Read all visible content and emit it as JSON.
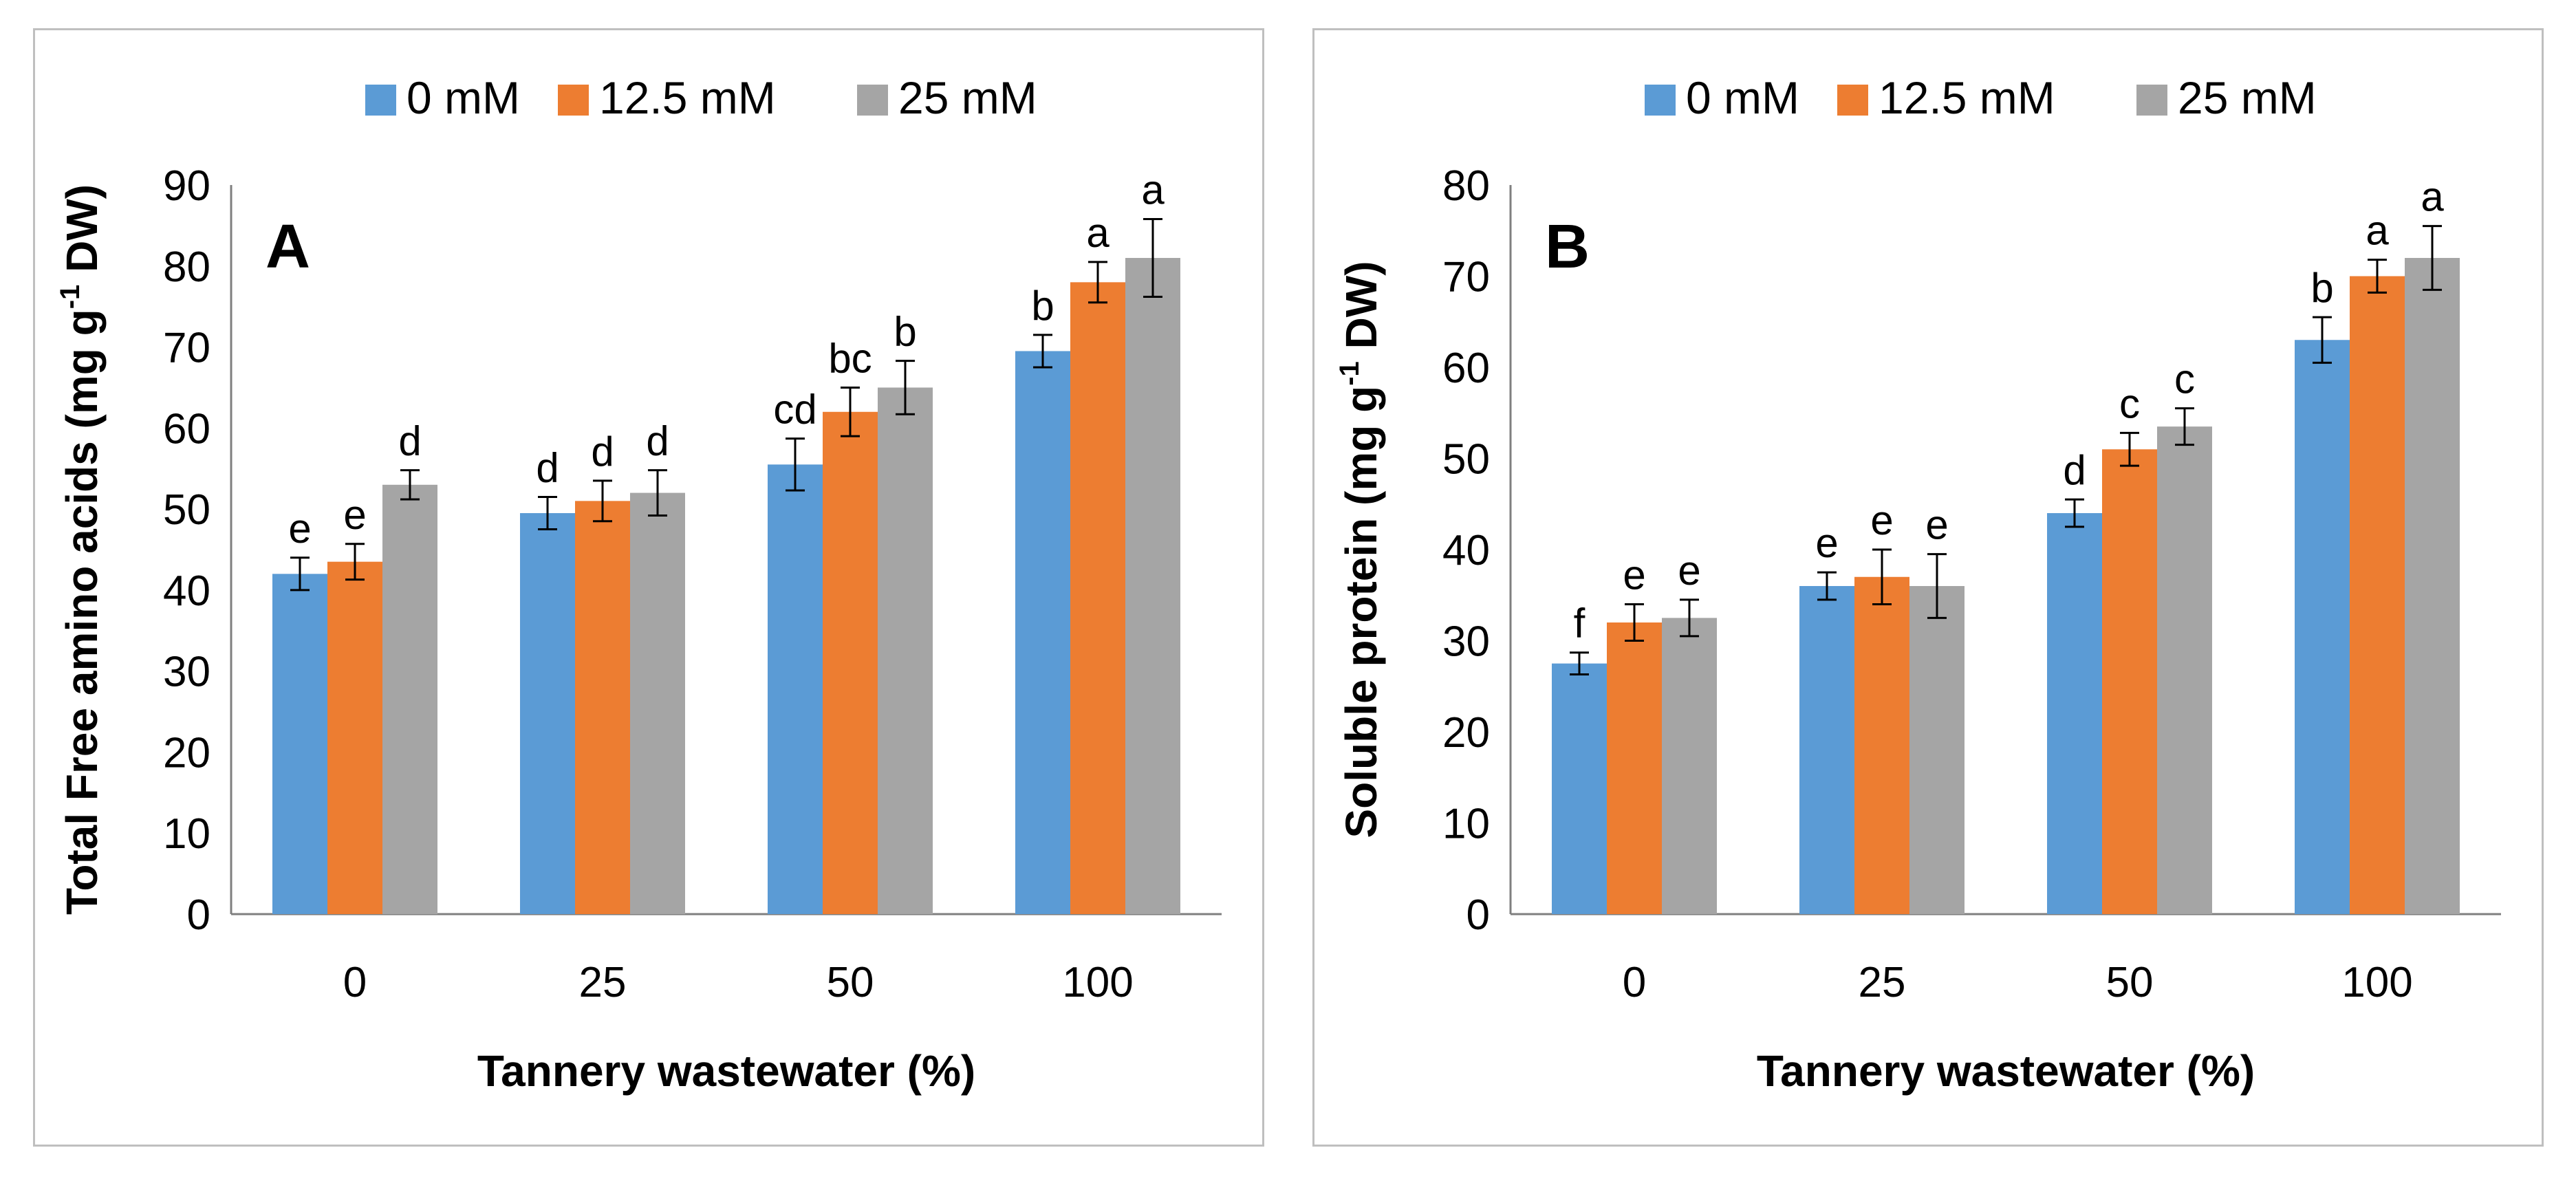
{
  "chart_data": [
    {
      "type": "bar",
      "panel_label": "A",
      "xlabel": "Tannery wastewater (%)",
      "ylabel_main": "Total Free amino acids (mg g",
      "ylabel_sup": "-1",
      "ylabel_tail": " DW)",
      "ylim": [
        0,
        90
      ],
      "yticks": [
        0,
        10,
        20,
        30,
        40,
        50,
        60,
        70,
        80,
        90
      ],
      "categories": [
        "0",
        "25",
        "50",
        "100"
      ],
      "legend_position": "top-center",
      "series": [
        {
          "name": "0 mM",
          "color": "#5b9bd5",
          "values": [
            42,
            49.5,
            55.5,
            69.5
          ],
          "errors": [
            2,
            2,
            3.2,
            2
          ],
          "letters": [
            "e",
            "d",
            "cd",
            "b"
          ]
        },
        {
          "name": "12.5 mM",
          "color": "#ed7d31",
          "values": [
            43.5,
            51,
            62,
            78
          ],
          "errors": [
            2.2,
            2.5,
            3,
            2.5
          ],
          "letters": [
            "e",
            "d",
            "bc",
            "a"
          ]
        },
        {
          "name": "25 mM",
          "color": "#a5a5a5",
          "values": [
            53,
            52,
            65,
            81
          ],
          "errors": [
            1.8,
            2.8,
            3.3,
            4.8
          ],
          "letters": [
            "d",
            "d",
            "b",
            "a"
          ]
        }
      ]
    },
    {
      "type": "bar",
      "panel_label": "B",
      "xlabel": "Tannery wastewater (%)",
      "ylabel_main": "Soluble protein (mg g",
      "ylabel_sup": "-1",
      "ylabel_tail": " DW)",
      "ylim": [
        0,
        80
      ],
      "yticks": [
        0,
        10,
        20,
        30,
        40,
        50,
        60,
        70,
        80
      ],
      "categories": [
        "0",
        "25",
        "50",
        "100"
      ],
      "legend_position": "top-center",
      "series": [
        {
          "name": "0 mM",
          "color": "#5b9bd5",
          "values": [
            27.5,
            36,
            44,
            63
          ],
          "errors": [
            1.2,
            1.5,
            1.5,
            2.5
          ],
          "letters": [
            "f",
            "e",
            "d",
            "b"
          ]
        },
        {
          "name": "12.5 mM",
          "color": "#ed7d31",
          "values": [
            32,
            37,
            51,
            70
          ],
          "errors": [
            2,
            3,
            1.8,
            1.8
          ],
          "letters": [
            "e",
            "e",
            "c",
            "a"
          ]
        },
        {
          "name": "25 mM",
          "color": "#a5a5a5",
          "values": [
            32.5,
            36,
            53.5,
            72
          ],
          "errors": [
            2,
            3.5,
            2,
            3.5
          ],
          "letters": [
            "e",
            "e",
            "c",
            "a"
          ]
        }
      ]
    }
  ]
}
